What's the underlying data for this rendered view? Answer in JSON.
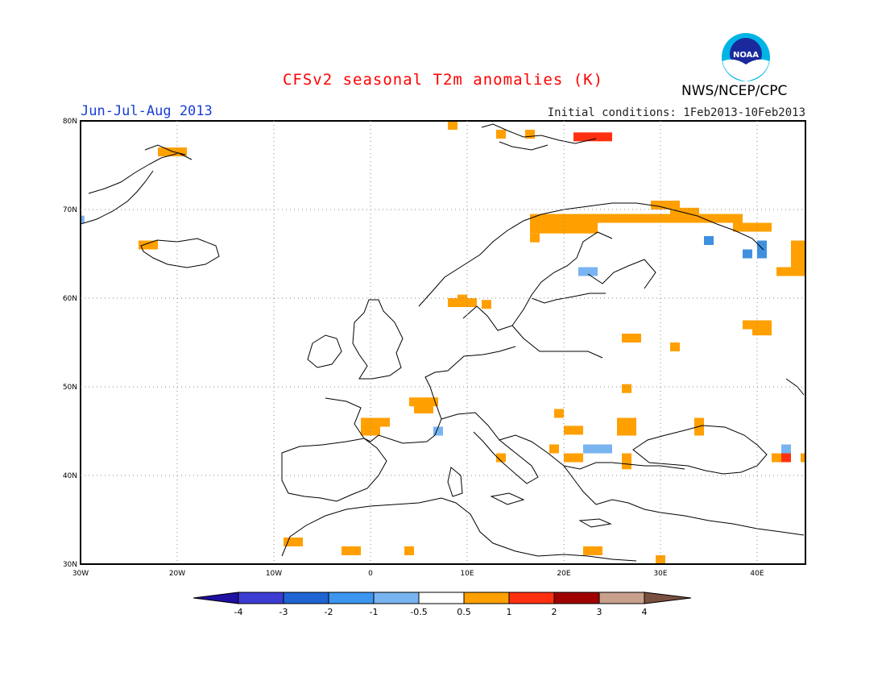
{
  "header": {
    "title": "CFSv2 seasonal T2m anomalies (K)",
    "season": "Jun-Jul-Aug 2013",
    "initial_conditions": "Initial conditions: 1Feb2013-10Feb2013",
    "agency": "NWS/NCEP/CPC",
    "logo_text": "NOAA"
  },
  "colors": {
    "title": "#ff0000",
    "season": "#1a3ed6",
    "orange": "#ffa000",
    "red": "#ff3010",
    "light_blue": "#78b4f0",
    "mid_blue": "#4090e0"
  },
  "map": {
    "lon_range": [
      -30,
      45
    ],
    "lat_range": [
      30,
      80
    ],
    "lon_ticks": [
      "30W",
      "20W",
      "10W",
      "0",
      "10E",
      "20E",
      "30E",
      "40E"
    ],
    "lat_ticks": [
      "80N",
      "70N",
      "60N",
      "50N",
      "40N",
      "30N"
    ],
    "gridlines": true,
    "cells": [
      {
        "lon": 8.0,
        "lat": 79.0,
        "w": 1,
        "h": 1,
        "c": "orange"
      },
      {
        "lon": 13.0,
        "lat": 78.0,
        "w": 1,
        "h": 1,
        "c": "orange"
      },
      {
        "lon": 16.0,
        "lat": 78.0,
        "w": 1,
        "h": 1,
        "c": "orange"
      },
      {
        "lon": 21.0,
        "lat": 77.7,
        "w": 4,
        "h": 1,
        "c": "red"
      },
      {
        "lon": -22.0,
        "lat": 76.0,
        "w": 3,
        "h": 1,
        "c": "orange"
      },
      {
        "lon": -24.0,
        "lat": 65.5,
        "w": 2,
        "h": 1,
        "c": "orange"
      },
      {
        "lon": -30.0,
        "lat": 68.5,
        "w": 0.4,
        "h": 0.8,
        "c": "light_blue"
      },
      {
        "lon": 16.5,
        "lat": 68.5,
        "w": 22,
        "h": 1,
        "c": "orange"
      },
      {
        "lon": 29.0,
        "lat": 70.0,
        "w": 3,
        "h": 1,
        "c": "orange"
      },
      {
        "lon": 31.0,
        "lat": 69.2,
        "w": 3,
        "h": 1,
        "c": "orange"
      },
      {
        "lon": 33.5,
        "lat": 68.5,
        "w": 4,
        "h": 1,
        "c": "orange"
      },
      {
        "lon": 37.5,
        "lat": 67.5,
        "w": 4,
        "h": 1,
        "c": "orange"
      },
      {
        "lon": 16.5,
        "lat": 67.3,
        "w": 7,
        "h": 1.2,
        "c": "orange"
      },
      {
        "lon": 16.5,
        "lat": 66.3,
        "w": 1,
        "h": 1,
        "c": "orange"
      },
      {
        "lon": 34.5,
        "lat": 66.0,
        "w": 1,
        "h": 1,
        "c": "mid_blue"
      },
      {
        "lon": 38.5,
        "lat": 64.5,
        "w": 1,
        "h": 1,
        "c": "mid_blue"
      },
      {
        "lon": 40.0,
        "lat": 64.5,
        "w": 1,
        "h": 2,
        "c": "mid_blue"
      },
      {
        "lon": 43.5,
        "lat": 63.5,
        "w": 1.5,
        "h": 3,
        "c": "orange"
      },
      {
        "lon": 42.0,
        "lat": 62.5,
        "w": 3,
        "h": 1,
        "c": "orange"
      },
      {
        "lon": 21.5,
        "lat": 62.5,
        "w": 2,
        "h": 1,
        "c": "light_blue"
      },
      {
        "lon": 8.0,
        "lat": 59.0,
        "w": 3,
        "h": 1,
        "c": "orange"
      },
      {
        "lon": 9.0,
        "lat": 59.6,
        "w": 1,
        "h": 0.8,
        "c": "orange"
      },
      {
        "lon": 11.5,
        "lat": 58.8,
        "w": 1,
        "h": 1,
        "c": "orange"
      },
      {
        "lon": 38.5,
        "lat": 56.5,
        "w": 3,
        "h": 1,
        "c": "orange"
      },
      {
        "lon": 39.5,
        "lat": 55.8,
        "w": 2,
        "h": 1,
        "c": "orange"
      },
      {
        "lon": 26.0,
        "lat": 55.0,
        "w": 2,
        "h": 1,
        "c": "orange"
      },
      {
        "lon": 31.0,
        "lat": 54.0,
        "w": 1,
        "h": 1,
        "c": "orange"
      },
      {
        "lon": 26.0,
        "lat": 49.3,
        "w": 1,
        "h": 1,
        "c": "orange"
      },
      {
        "lon": 4.0,
        "lat": 47.8,
        "w": 3,
        "h": 1,
        "c": "orange"
      },
      {
        "lon": 4.5,
        "lat": 47.0,
        "w": 2,
        "h": 1,
        "c": "orange"
      },
      {
        "lon": -1.0,
        "lat": 45.5,
        "w": 3,
        "h": 1,
        "c": "orange"
      },
      {
        "lon": -1.0,
        "lat": 44.5,
        "w": 2,
        "h": 1,
        "c": "orange"
      },
      {
        "lon": 6.5,
        "lat": 44.5,
        "w": 1,
        "h": 1,
        "c": "light_blue"
      },
      {
        "lon": 19.0,
        "lat": 46.5,
        "w": 1,
        "h": 1,
        "c": "orange"
      },
      {
        "lon": 20.0,
        "lat": 44.6,
        "w": 2,
        "h": 1,
        "c": "orange"
      },
      {
        "lon": 25.5,
        "lat": 45.5,
        "w": 2,
        "h": 1,
        "c": "orange"
      },
      {
        "lon": 25.5,
        "lat": 44.5,
        "w": 2,
        "h": 1,
        "c": "orange"
      },
      {
        "lon": 33.5,
        "lat": 45.5,
        "w": 1,
        "h": 1,
        "c": "orange"
      },
      {
        "lon": 33.5,
        "lat": 44.5,
        "w": 1,
        "h": 1,
        "c": "orange"
      },
      {
        "lon": 22.0,
        "lat": 42.5,
        "w": 3,
        "h": 1,
        "c": "light_blue"
      },
      {
        "lon": 18.5,
        "lat": 42.5,
        "w": 1,
        "h": 1,
        "c": "orange"
      },
      {
        "lon": 20.0,
        "lat": 41.5,
        "w": 2,
        "h": 1,
        "c": "orange"
      },
      {
        "lon": 26.0,
        "lat": 41.5,
        "w": 1,
        "h": 1,
        "c": "orange"
      },
      {
        "lon": 26.0,
        "lat": 40.7,
        "w": 1,
        "h": 0.8,
        "c": "orange"
      },
      {
        "lon": 13.0,
        "lat": 41.5,
        "w": 1,
        "h": 1,
        "c": "orange"
      },
      {
        "lon": 42.5,
        "lat": 42.5,
        "w": 1,
        "h": 1,
        "c": "light_blue"
      },
      {
        "lon": 41.5,
        "lat": 41.5,
        "w": 1,
        "h": 1,
        "c": "orange"
      },
      {
        "lon": 42.5,
        "lat": 41.5,
        "w": 1,
        "h": 1,
        "c": "red"
      },
      {
        "lon": 44.5,
        "lat": 41.5,
        "w": 0.5,
        "h": 1,
        "c": "orange"
      },
      {
        "lon": -9.0,
        "lat": 32.0,
        "w": 2,
        "h": 1,
        "c": "orange"
      },
      {
        "lon": -3.0,
        "lat": 31.0,
        "w": 2,
        "h": 1,
        "c": "orange"
      },
      {
        "lon": 3.5,
        "lat": 31.0,
        "w": 1,
        "h": 1,
        "c": "orange"
      },
      {
        "lon": 22.0,
        "lat": 31.0,
        "w": 2,
        "h": 1,
        "c": "orange"
      },
      {
        "lon": 29.5,
        "lat": 30.0,
        "w": 1,
        "h": 1,
        "c": "orange"
      }
    ]
  },
  "colorbar": {
    "labels": [
      "-4",
      "-3",
      "-2",
      "-1",
      "-0.5",
      "0.5",
      "1",
      "2",
      "3",
      "4"
    ],
    "colors": [
      "#1e10a0",
      "#3c3cd2",
      "#1e64d2",
      "#3c96f0",
      "#78b4f0",
      "#ffffff",
      "#ffa000",
      "#ff3010",
      "#a00000",
      "#c8a08c",
      "#7a5040"
    ]
  }
}
